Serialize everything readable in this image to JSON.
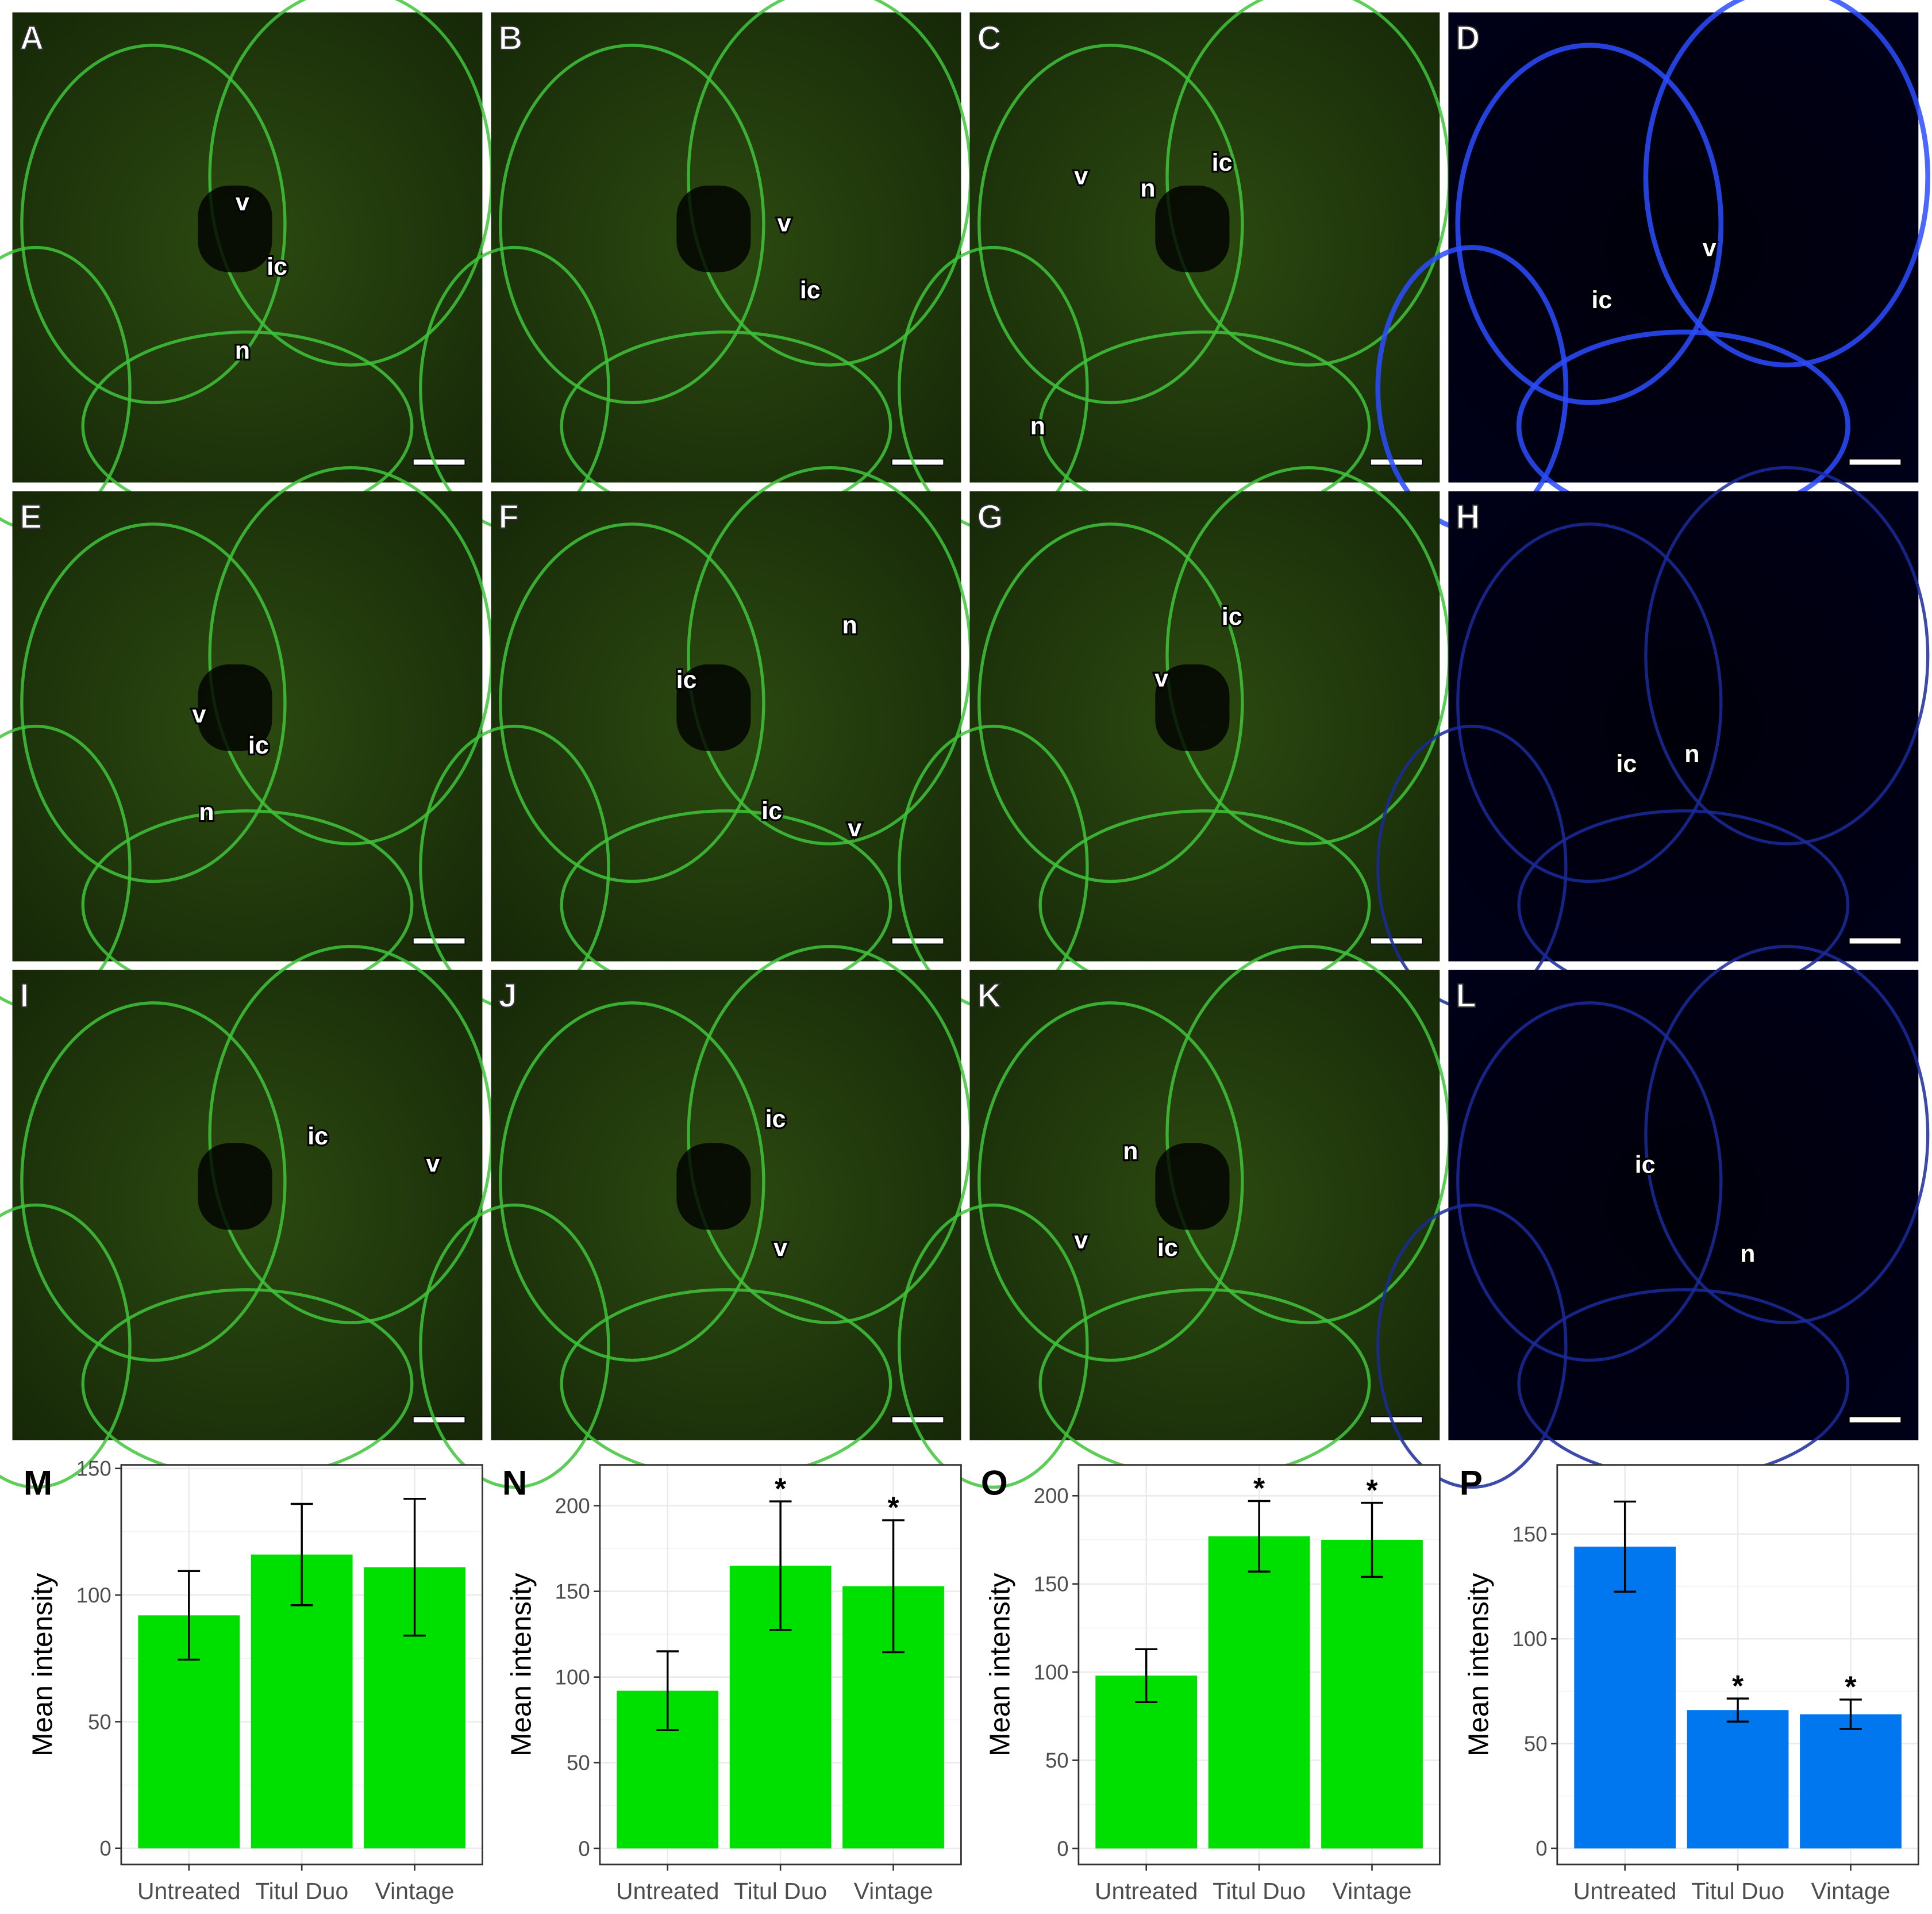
{
  "panels": [
    {
      "letter": "A",
      "labels": [
        "v",
        "ic",
        "n"
      ]
    },
    {
      "letter": "B",
      "labels": [
        "v",
        "ic"
      ]
    },
    {
      "letter": "C",
      "labels": [
        "v",
        "n",
        "ic",
        "n"
      ]
    },
    {
      "letter": "D",
      "labels": [
        "v",
        "ic"
      ]
    },
    {
      "letter": "E",
      "labels": [
        "v",
        "ic",
        "n"
      ]
    },
    {
      "letter": "F",
      "labels": [
        "n",
        "ic",
        "ic",
        "v"
      ]
    },
    {
      "letter": "G",
      "labels": [
        "ic",
        "v"
      ]
    },
    {
      "letter": "H",
      "labels": [
        "ic",
        "n"
      ]
    },
    {
      "letter": "I",
      "labels": [
        "ic",
        "v"
      ]
    },
    {
      "letter": "J",
      "labels": [
        "ic",
        "v"
      ]
    },
    {
      "letter": "K",
      "labels": [
        "n",
        "v",
        "ic"
      ]
    },
    {
      "letter": "L",
      "labels": [
        "ic",
        "n"
      ]
    }
  ],
  "chart_data": [
    {
      "type": "bar",
      "panel": "M",
      "ylabel": "Mean intensity",
      "categories": [
        "Untreated",
        "Titul Duo",
        "Vintage"
      ],
      "values": [
        92,
        116,
        111
      ],
      "error": [
        17.5,
        20,
        27
      ],
      "annotations": [
        null,
        null,
        null
      ],
      "color": "#00e000",
      "ylim": [
        -6.4,
        151.4
      ],
      "yticks": [
        0,
        50,
        100,
        150
      ],
      "grid": true
    },
    {
      "type": "bar",
      "panel": "N",
      "ylabel": "Mean intensity",
      "categories": [
        "Untreated",
        "Titul Duo",
        "Vintage"
      ],
      "values": [
        92,
        165,
        153
      ],
      "error": [
        23,
        37.5,
        38.5
      ],
      "annotations": [
        null,
        "*",
        "*"
      ],
      "color": "#00e000",
      "ylim": [
        -9.4,
        223.8
      ],
      "yticks": [
        0,
        50,
        100,
        150,
        200
      ],
      "grid": true
    },
    {
      "type": "bar",
      "panel": "O",
      "ylabel": "Mean intensity",
      "categories": [
        "Untreated",
        "Titul Duo",
        "Vintage"
      ],
      "values": [
        98,
        177,
        175
      ],
      "error": [
        15,
        20,
        21
      ],
      "annotations": [
        null,
        "*",
        "*"
      ],
      "color": "#00e000",
      "ylim": [
        -9.1,
        217.5
      ],
      "yticks": [
        0,
        50,
        100,
        150,
        200
      ],
      "grid": true
    },
    {
      "type": "bar",
      "panel": "P",
      "ylabel": "Mean intensity",
      "categories": [
        "Untreated",
        "Titul Duo",
        "Vintage"
      ],
      "values": [
        144,
        66,
        64
      ],
      "error": [
        21.5,
        5.5,
        7
      ],
      "annotations": [
        null,
        "*",
        "*"
      ],
      "color": "#0077ee",
      "ylim": [
        -7.7,
        183
      ],
      "yticks": [
        0,
        50,
        100,
        150
      ],
      "grid": true
    }
  ]
}
